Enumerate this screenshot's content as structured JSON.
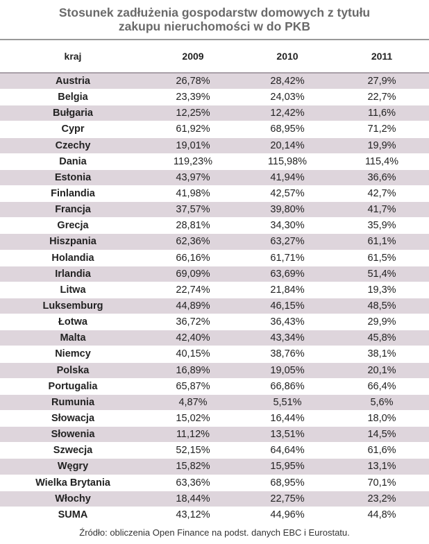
{
  "chart_data": {
    "type": "table",
    "title": [
      "Stosunek zadłużenia gospodarstw domowych z tytułu",
      "zakupu nieruchomości w do PKB"
    ],
    "columns": [
      "kraj",
      "2009",
      "2010",
      "2011"
    ],
    "rows": [
      [
        "Austria",
        "26,78%",
        "28,42%",
        "27,9%"
      ],
      [
        "Belgia",
        "23,39%",
        "24,03%",
        "22,7%"
      ],
      [
        "Bułgaria",
        "12,25%",
        "12,42%",
        "11,6%"
      ],
      [
        "Cypr",
        "61,92%",
        "68,95%",
        "71,2%"
      ],
      [
        "Czechy",
        "19,01%",
        "20,14%",
        "19,9%"
      ],
      [
        "Dania",
        "119,23%",
        "115,98%",
        "115,4%"
      ],
      [
        "Estonia",
        "43,97%",
        "41,94%",
        "36,6%"
      ],
      [
        "Finlandia",
        "41,98%",
        "42,57%",
        "42,7%"
      ],
      [
        "Francja",
        "37,57%",
        "39,80%",
        "41,7%"
      ],
      [
        "Grecja",
        "28,81%",
        "34,30%",
        "35,9%"
      ],
      [
        "Hiszpania",
        "62,36%",
        "63,27%",
        "61,1%"
      ],
      [
        "Holandia",
        "66,16%",
        "61,71%",
        "61,5%"
      ],
      [
        "Irlandia",
        "69,09%",
        "63,69%",
        "51,4%"
      ],
      [
        "Litwa",
        "22,74%",
        "21,84%",
        "19,3%"
      ],
      [
        "Luksemburg",
        "44,89%",
        "46,15%",
        "48,5%"
      ],
      [
        "Łotwa",
        "36,72%",
        "36,43%",
        "29,9%"
      ],
      [
        "Malta",
        "42,40%",
        "43,34%",
        "45,8%"
      ],
      [
        "Niemcy",
        "40,15%",
        "38,76%",
        "38,1%"
      ],
      [
        "Polska",
        "16,89%",
        "19,05%",
        "20,1%"
      ],
      [
        "Portugalia",
        "65,87%",
        "66,86%",
        "66,4%"
      ],
      [
        "Rumunia",
        "4,87%",
        "5,51%",
        "5,6%"
      ],
      [
        "Słowacja",
        "15,02%",
        "16,44%",
        "18,0%"
      ],
      [
        "Słowenia",
        "11,12%",
        "13,51%",
        "14,5%"
      ],
      [
        "Szwecja",
        "52,15%",
        "64,64%",
        "61,6%"
      ],
      [
        "Węgry",
        "15,82%",
        "15,95%",
        "13,1%"
      ],
      [
        "Wielka Brytania",
        "63,36%",
        "68,95%",
        "70,1%"
      ],
      [
        "Włochy",
        "18,44%",
        "22,75%",
        "23,2%"
      ],
      [
        "SUMA",
        "43,12%",
        "44,96%",
        "44,8%"
      ]
    ],
    "source": "Źródło: obliczenia Open Finance na podst. danych EBC i Eurostatu."
  },
  "colors": {
    "shade": "#ded5dc",
    "title": "#6a6a6a",
    "rule": "#999999"
  }
}
